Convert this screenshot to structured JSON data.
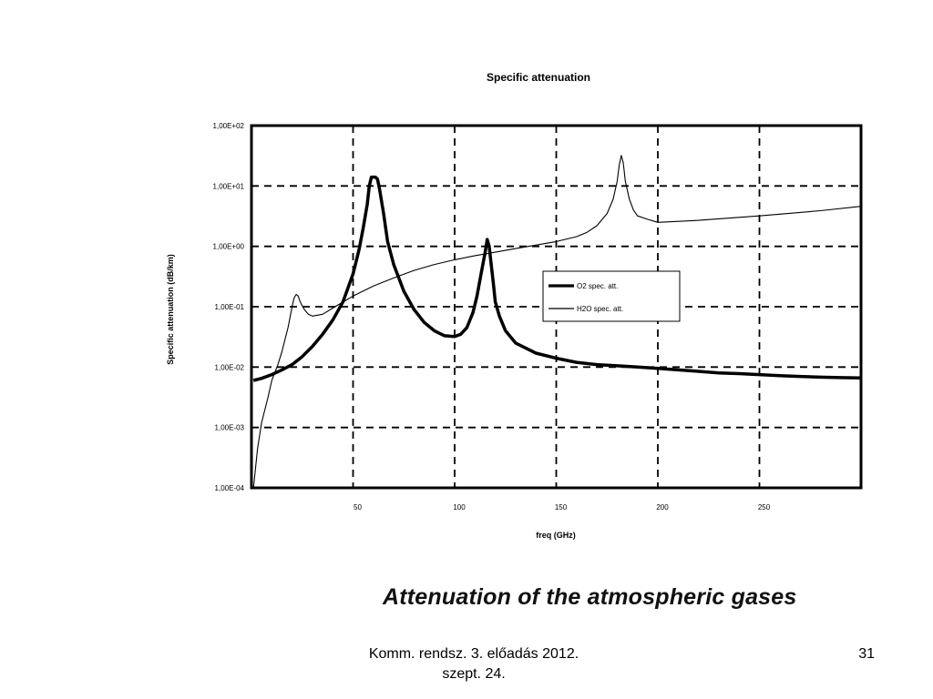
{
  "caption": "Attenuation of the atmospheric gases",
  "footer": {
    "line1": "Komm. rendsz. 3. előadás 2012.",
    "line2": "szept. 24."
  },
  "page_number": "31",
  "chart_data": {
    "type": "line",
    "title": "Specific attenuation",
    "xlabel": "freq (GHz)",
    "ylabel": "Specific attenuation (dB/km)",
    "y_scale": "log",
    "xlim": [
      0,
      300
    ],
    "ylim": [
      0.0001,
      100
    ],
    "grid": true,
    "legend_position": "center-right",
    "x_tick_values": [
      50,
      100,
      150,
      200,
      250
    ],
    "x_tick_labels": [
      "50",
      "100",
      "150",
      "200",
      "250"
    ],
    "y_tick_values": [
      0.0001,
      0.001,
      0.01,
      0.1,
      1,
      10,
      100
    ],
    "y_tick_labels": [
      "1,00E-04",
      "1,00E-03",
      "1,00E-02",
      "1,00E-01",
      "1,00E+00",
      "1,00E+01",
      "1,00E+02"
    ],
    "series": [
      {
        "name": "O2 spec. att.",
        "line_width": "thick",
        "x": [
          1,
          5,
          10,
          15,
          20,
          25,
          30,
          35,
          40,
          45,
          50,
          53,
          55,
          57,
          58,
          59,
          60,
          61,
          62,
          63,
          65,
          67,
          70,
          75,
          80,
          85,
          90,
          95,
          100,
          103,
          106,
          109,
          111,
          113,
          115,
          116,
          117,
          118,
          119,
          120,
          122,
          125,
          130,
          140,
          150,
          160,
          170,
          180,
          190,
          200,
          210,
          220,
          230,
          240,
          250,
          260,
          270,
          280,
          290,
          300
        ],
        "y": [
          0.006,
          0.0065,
          0.0075,
          0.009,
          0.011,
          0.015,
          0.022,
          0.035,
          0.06,
          0.12,
          0.35,
          0.9,
          2.0,
          5.0,
          10,
          14,
          14,
          14,
          13,
          9,
          3.5,
          1.2,
          0.5,
          0.18,
          0.09,
          0.055,
          0.04,
          0.033,
          0.032,
          0.035,
          0.045,
          0.08,
          0.15,
          0.35,
          0.8,
          1.3,
          1.0,
          0.5,
          0.25,
          0.12,
          0.07,
          0.04,
          0.025,
          0.017,
          0.014,
          0.012,
          0.011,
          0.0105,
          0.01,
          0.0095,
          0.009,
          0.0085,
          0.008,
          0.0078,
          0.0075,
          0.0072,
          0.007,
          0.0068,
          0.0067,
          0.0066
        ]
      },
      {
        "name": "H2O spec. att.",
        "line_width": "thin",
        "x": [
          1,
          3,
          5,
          8,
          10,
          13,
          15,
          18,
          20,
          21,
          22,
          23,
          24,
          26,
          28,
          30,
          35,
          40,
          50,
          60,
          70,
          80,
          90,
          100,
          110,
          120,
          130,
          140,
          150,
          160,
          165,
          170,
          175,
          178,
          180,
          181,
          182,
          183,
          184,
          186,
          188,
          190,
          195,
          200,
          220,
          250,
          280,
          300
        ],
        "y": [
          0.0001,
          0.00045,
          0.0012,
          0.003,
          0.006,
          0.011,
          0.018,
          0.045,
          0.1,
          0.14,
          0.16,
          0.15,
          0.12,
          0.09,
          0.075,
          0.07,
          0.075,
          0.095,
          0.15,
          0.22,
          0.3,
          0.4,
          0.5,
          0.6,
          0.7,
          0.8,
          0.92,
          1.05,
          1.2,
          1.45,
          1.7,
          2.2,
          3.5,
          6,
          12,
          22,
          32,
          24,
          12,
          6,
          4,
          3.2,
          2.8,
          2.5,
          2.7,
          3.2,
          3.9,
          4.6
        ]
      }
    ]
  }
}
